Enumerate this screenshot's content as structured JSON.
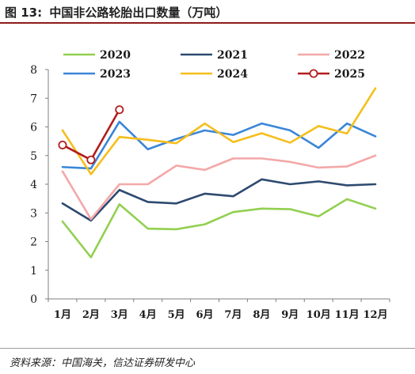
{
  "figure": {
    "label": "图 13:",
    "title": "中国非公路轮胎出口数量（万吨）",
    "source": "资料来源：中国海关，信达证券研发中心"
  },
  "chart_data": {
    "type": "line",
    "title": "中国非公路轮胎出口数量（万吨）",
    "xlabel": "",
    "ylabel": "",
    "categories": [
      "1月",
      "2月",
      "3月",
      "4月",
      "5月",
      "6月",
      "7月",
      "8月",
      "9月",
      "10月",
      "11月",
      "12月"
    ],
    "ylim": [
      0,
      8
    ],
    "yticks": [
      0,
      1,
      2,
      3,
      4,
      5,
      6,
      7,
      8
    ],
    "grid": false,
    "legend_position": "top",
    "series": [
      {
        "name": "2020",
        "color": "#92d050",
        "marker": "none",
        "values": [
          2.7,
          1.45,
          3.3,
          2.45,
          2.43,
          2.6,
          3.03,
          3.15,
          3.13,
          2.88,
          3.48,
          3.15
        ]
      },
      {
        "name": "2021",
        "color": "#2e4a70",
        "marker": "none",
        "values": [
          3.33,
          2.73,
          3.8,
          3.38,
          3.33,
          3.67,
          3.58,
          4.17,
          4.0,
          4.1,
          3.96,
          4.0
        ]
      },
      {
        "name": "2022",
        "color": "#f4a8a8",
        "marker": "none",
        "values": [
          4.45,
          2.78,
          4.0,
          4.0,
          4.65,
          4.5,
          4.9,
          4.9,
          4.78,
          4.58,
          4.62,
          5.0
        ]
      },
      {
        "name": "2023",
        "color": "#3a86d8",
        "marker": "none",
        "values": [
          4.6,
          4.55,
          6.18,
          5.22,
          5.58,
          5.88,
          5.72,
          6.12,
          5.88,
          5.27,
          6.12,
          5.67
        ]
      },
      {
        "name": "2024",
        "color": "#f5be1c",
        "marker": "none",
        "values": [
          5.88,
          4.35,
          5.65,
          5.55,
          5.43,
          6.12,
          5.47,
          5.78,
          5.45,
          6.03,
          5.77,
          7.35
        ]
      },
      {
        "name": "2025",
        "color": "#b21d1d",
        "marker": "circle",
        "values": [
          5.37,
          4.85,
          6.6,
          null,
          null,
          null,
          null,
          null,
          null,
          null,
          null,
          null
        ]
      }
    ]
  }
}
